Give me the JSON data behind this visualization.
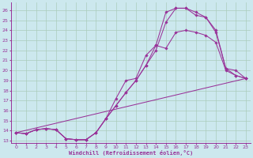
{
  "bg_color": "#cce8ee",
  "grid_color": "#aaccbb",
  "line_color": "#993399",
  "xlabel": "Windchill (Refroidissement éolien,°C)",
  "xlim": [
    -0.5,
    23.5
  ],
  "ylim": [
    12.8,
    26.8
  ],
  "xticks": [
    0,
    1,
    2,
    3,
    4,
    5,
    6,
    7,
    8,
    9,
    10,
    11,
    12,
    13,
    14,
    15,
    16,
    17,
    18,
    19,
    20,
    21,
    22,
    23
  ],
  "yticks": [
    13,
    14,
    15,
    16,
    17,
    18,
    19,
    20,
    21,
    22,
    23,
    24,
    25,
    26
  ],
  "line1_x": [
    0,
    1,
    2,
    3,
    4,
    5,
    6,
    7,
    8,
    9,
    10,
    11,
    12,
    13,
    14,
    15,
    16,
    17,
    18,
    19,
    20,
    21,
    22,
    23
  ],
  "line1_y": [
    13.8,
    13.7,
    14.1,
    14.2,
    14.1,
    13.2,
    13.1,
    13.1,
    13.8,
    15.2,
    16.5,
    17.8,
    19.0,
    20.5,
    22.0,
    24.8,
    26.2,
    26.2,
    25.8,
    25.3,
    24.0,
    20.2,
    20.0,
    19.2
  ],
  "line2_x": [
    0,
    1,
    2,
    3,
    4,
    5,
    6,
    7,
    8,
    9,
    10,
    11,
    12,
    13,
    14,
    15,
    16,
    17,
    18,
    19,
    20,
    21,
    22,
    23
  ],
  "line2_y": [
    13.8,
    13.7,
    14.1,
    14.2,
    14.1,
    13.2,
    13.1,
    13.1,
    13.8,
    15.2,
    17.2,
    19.0,
    19.2,
    21.5,
    22.5,
    22.2,
    23.8,
    24.0,
    23.8,
    23.5,
    22.8,
    20.0,
    19.5,
    19.2
  ],
  "line3_x": [
    0,
    23
  ],
  "line3_y": [
    13.8,
    19.2
  ],
  "line4_x": [
    0,
    1,
    2,
    3,
    4,
    5,
    6,
    7,
    8,
    9,
    10,
    11,
    12,
    13,
    14,
    15,
    16,
    17,
    18,
    19,
    20,
    21,
    22,
    23
  ],
  "line4_y": [
    13.8,
    13.7,
    14.1,
    14.2,
    14.1,
    13.2,
    13.1,
    13.1,
    13.8,
    15.2,
    16.5,
    17.8,
    19.0,
    20.5,
    22.5,
    25.8,
    26.2,
    26.2,
    25.5,
    25.3,
    23.8,
    20.2,
    19.5,
    19.2
  ]
}
